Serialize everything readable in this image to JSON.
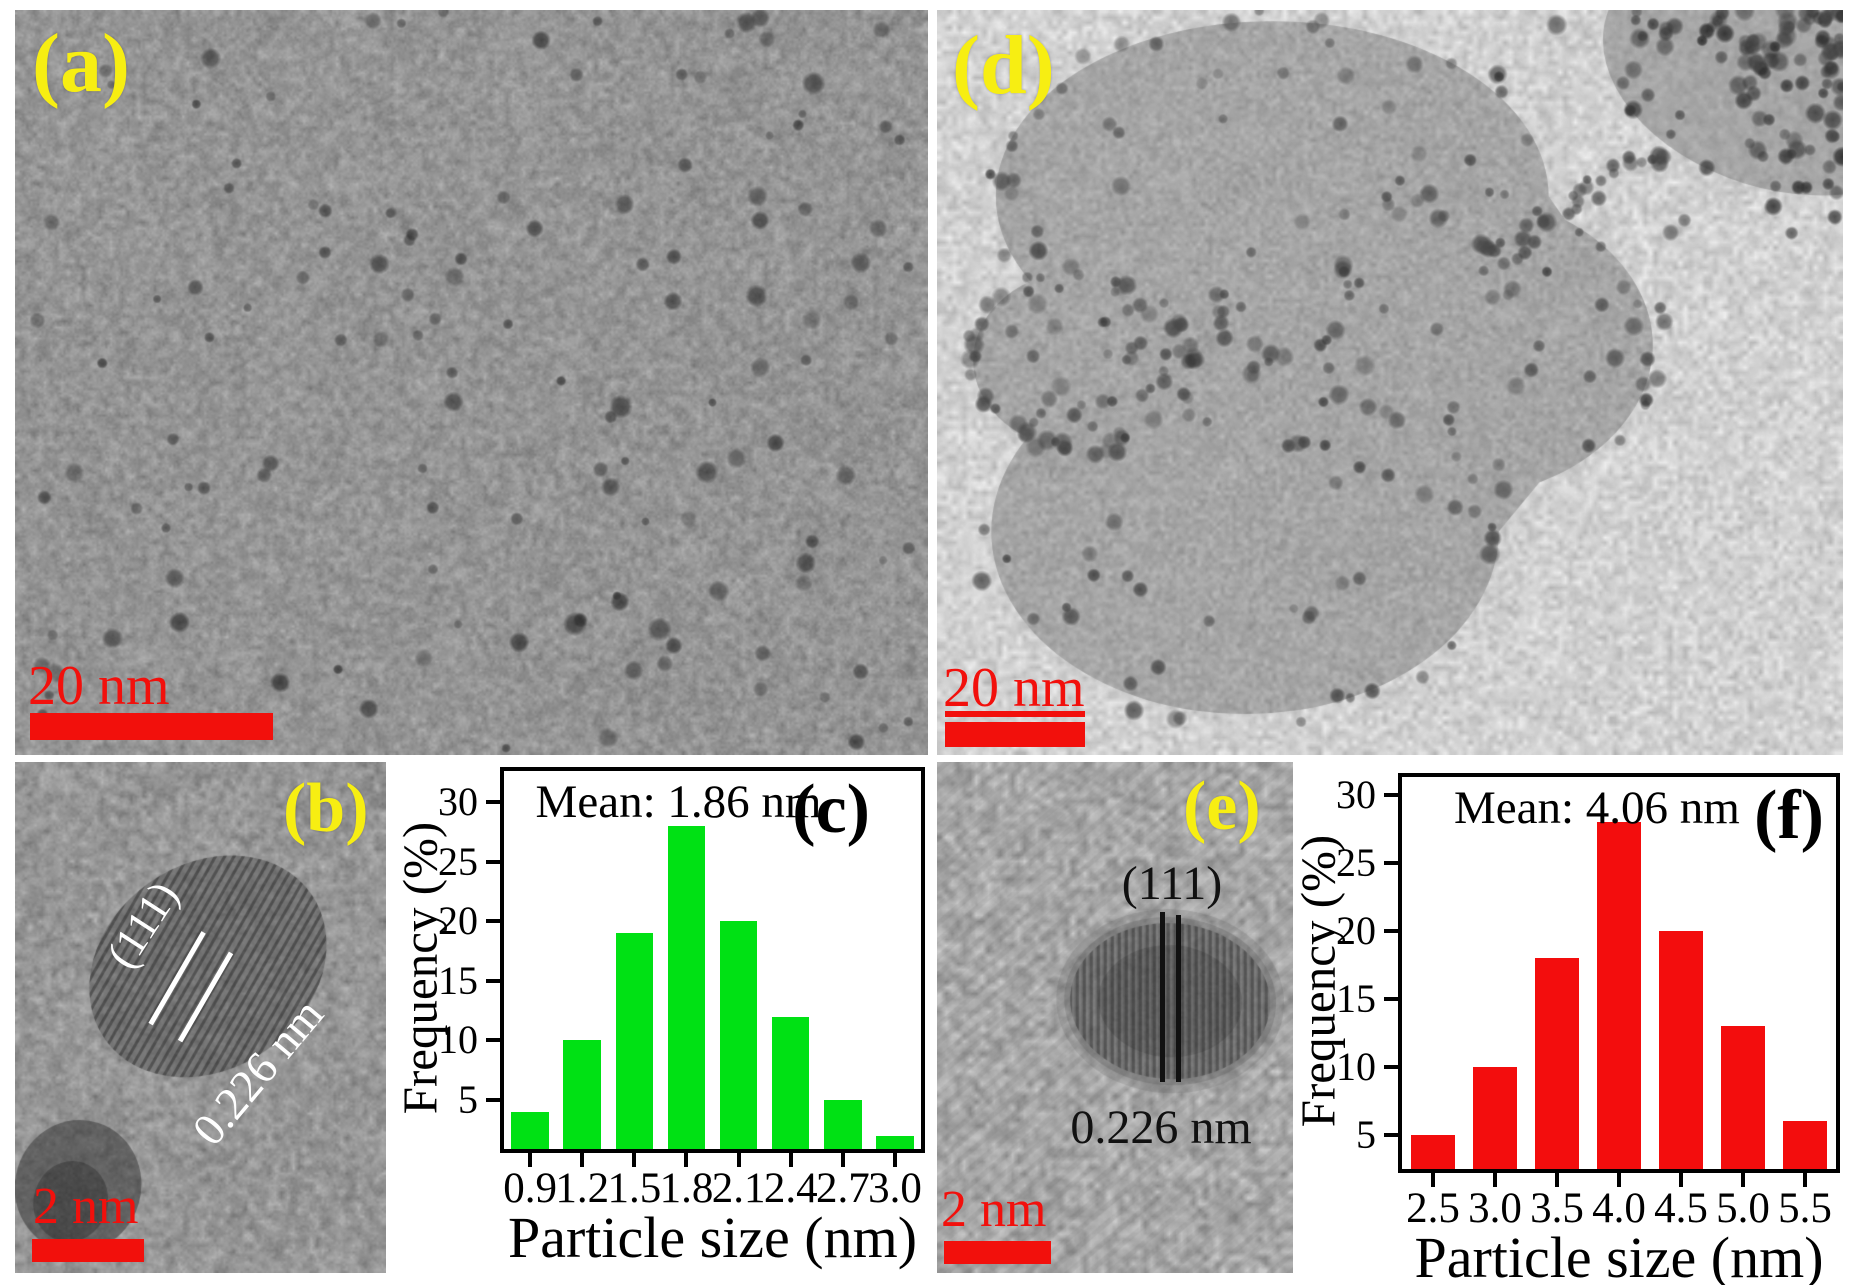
{
  "figure": {
    "panels": {
      "a": {
        "label": "(a)",
        "scale_text": "20 nm"
      },
      "b": {
        "label": "(b)",
        "plane": "(111)",
        "spacing": "0.226 nm",
        "scale_text": "2 nm"
      },
      "c": {
        "label": "(c)"
      },
      "d": {
        "label": "(d)",
        "scale_text": "20 nm"
      },
      "e": {
        "label": "(e)",
        "plane": "(111)",
        "spacing": "0.226 nm",
        "scale_text": "2 nm"
      },
      "f": {
        "label": "(f)"
      }
    },
    "colors": {
      "scale_bar_red": "#f2100c",
      "panel_label_yellow": "#f7ee12",
      "histogram_green": "#00e114",
      "histogram_red": "#f30d0d"
    }
  },
  "chart_data": [
    {
      "id": "c",
      "type": "bar",
      "panel_label": "(c)",
      "title": "Mean: 1.86 nm",
      "categories": [
        "0.9",
        "1.2",
        "1.5",
        "1.8",
        "2.1",
        "2.4",
        "2.7",
        "3.0"
      ],
      "values": [
        4,
        10,
        19,
        28,
        20,
        12,
        5,
        2
      ],
      "xlabel": "Particle size (nm)",
      "ylabel": "Frequency (%)",
      "yticks": [
        5,
        10,
        15,
        20,
        25,
        30
      ],
      "ylim": [
        0.9,
        32.6
      ],
      "bar_color": "#00e114",
      "grid": false,
      "legend": "none"
    },
    {
      "id": "f",
      "type": "bar",
      "panel_label": "(f)",
      "title": "Mean: 4.06 nm",
      "categories": [
        "2.5",
        "3.0",
        "3.5",
        "4.0",
        "4.5",
        "5.0",
        "5.5"
      ],
      "values": [
        5,
        10,
        18,
        28,
        20,
        13,
        6
      ],
      "xlabel": "Particle size (nm)",
      "ylabel": "Frequency (%)",
      "yticks": [
        5,
        10,
        15,
        20,
        25,
        30
      ],
      "ylim": [
        2.5,
        31.3
      ],
      "bar_color": "#f30d0d",
      "grid": false,
      "legend": "none"
    }
  ]
}
